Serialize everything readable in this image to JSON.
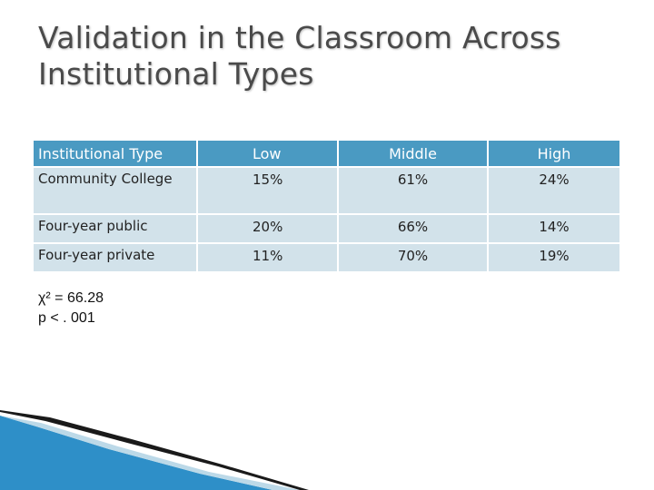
{
  "slide": {
    "title_line1": "Validation in the Classroom Across",
    "title_line2": "Institutional Types"
  },
  "table": {
    "headers": [
      "Institutional Type",
      "Low",
      "Middle",
      "High"
    ],
    "rows": [
      {
        "type": "Community College",
        "low": "15%",
        "middle": "61%",
        "high": "24%"
      },
      {
        "type": "Four-year public",
        "low": "20%",
        "middle": "66%",
        "high": "14%"
      },
      {
        "type": "Four-year private",
        "low": "11%",
        "middle": "70%",
        "high": "19%"
      }
    ]
  },
  "stats": {
    "chi_square": "χ² = 66.28",
    "p_value": "p < . 001"
  },
  "colors": {
    "header_bg": "#4a9ac2",
    "cell_bg": "#d2e2ea",
    "title": "#4a4a4a",
    "accent_blue": "#2e8fc8"
  }
}
